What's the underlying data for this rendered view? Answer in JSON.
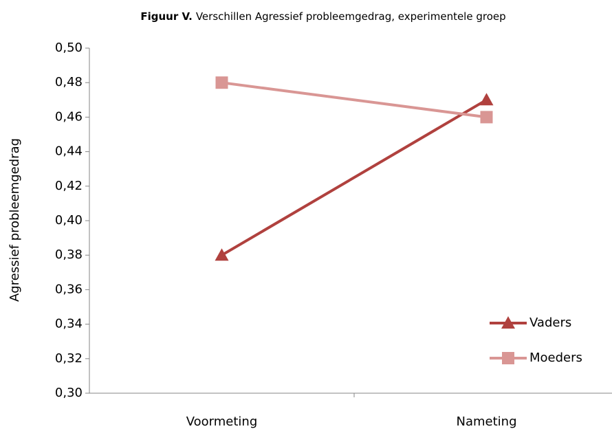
{
  "chart_data": {
    "type": "line",
    "title": {
      "label": "Figuur V.",
      "text": "Verschillen Agressief probleemgedrag, experimentele groep"
    },
    "y_label": "Agressief probleemgedrag",
    "categories": [
      "Voormeting",
      "Nameting"
    ],
    "series": [
      {
        "name": "Vaders",
        "color": "#b0413e",
        "marker": "triangle",
        "values": [
          0.38,
          0.47
        ]
      },
      {
        "name": "Moeders",
        "color": "#d99694",
        "marker": "square",
        "values": [
          0.48,
          0.46
        ]
      }
    ],
    "ylim": [
      0.3,
      0.5
    ],
    "yticks": [
      {
        "value": 0.3,
        "label": "0,30"
      },
      {
        "value": 0.32,
        "label": "0,32"
      },
      {
        "value": 0.34,
        "label": "0,34"
      },
      {
        "value": 0.36,
        "label": "0,36"
      },
      {
        "value": 0.38,
        "label": "0,38"
      },
      {
        "value": 0.4,
        "label": "0,40"
      },
      {
        "value": 0.42,
        "label": "0,42"
      },
      {
        "value": 0.44,
        "label": "0,44"
      },
      {
        "value": 0.46,
        "label": "0,46"
      },
      {
        "value": 0.48,
        "label": "0,48"
      },
      {
        "value": 0.5,
        "label": "0,50"
      }
    ],
    "grid": false,
    "legend": "lower right"
  }
}
